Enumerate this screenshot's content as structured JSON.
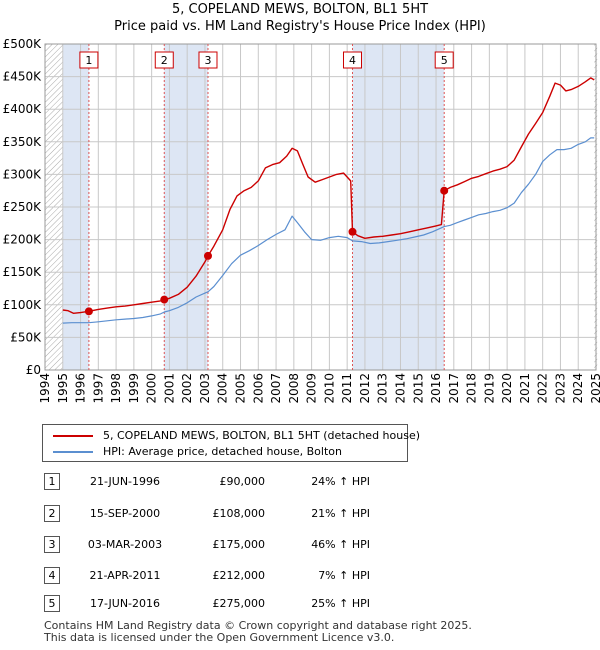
{
  "chart_data": {
    "type": "line",
    "title": "5, COPELAND MEWS, BOLTON, BL1 5HT",
    "subtitle": "Price paid vs. HM Land Registry's House Price Index (HPI)",
    "xlim": [
      1994,
      2025
    ],
    "ylim": [
      0,
      500000
    ],
    "y_ticks": [
      {
        "value": 0,
        "label": "£0"
      },
      {
        "value": 50000,
        "label": "£50K"
      },
      {
        "value": 100000,
        "label": "£100K"
      },
      {
        "value": 150000,
        "label": "£150K"
      },
      {
        "value": 200000,
        "label": "£200K"
      },
      {
        "value": 250000,
        "label": "£250K"
      },
      {
        "value": 300000,
        "label": "£300K"
      },
      {
        "value": 350000,
        "label": "£350K"
      },
      {
        "value": 400000,
        "label": "£400K"
      },
      {
        "value": 450000,
        "label": "£450K"
      },
      {
        "value": 500000,
        "label": "£500K"
      }
    ],
    "x_ticks": [
      "1994",
      "1995",
      "1996",
      "1997",
      "1998",
      "1999",
      "2000",
      "2001",
      "2002",
      "2003",
      "2004",
      "2005",
      "2006",
      "2007",
      "2008",
      "2009",
      "2010",
      "2011",
      "2012",
      "2013",
      "2014",
      "2015",
      "2016",
      "2017",
      "2018",
      "2019",
      "2020",
      "2021",
      "2022",
      "2023",
      "2024",
      "2025"
    ],
    "data_start": 1995.0,
    "data_end": 2024.9,
    "grid": true,
    "shaded_bands": [
      [
        1995.0,
        1996.47
      ],
      [
        2000.71,
        2003.17
      ],
      [
        2011.3,
        2016.46
      ]
    ],
    "hatch_regions": [
      [
        1994.0,
        1995.0
      ],
      [
        2024.9,
        2025.0
      ]
    ],
    "series": [
      {
        "name": "5, COPELAND MEWS, BOLTON, BL1 5HT (detached house)",
        "color": "#cc0000",
        "points": [
          [
            1995.0,
            92000
          ],
          [
            1995.3,
            91000
          ],
          [
            1995.6,
            87000
          ],
          [
            1996.0,
            88000
          ],
          [
            1996.47,
            90000
          ],
          [
            1997.0,
            93000
          ],
          [
            1997.5,
            95000
          ],
          [
            1998.0,
            97000
          ],
          [
            1998.5,
            98000
          ],
          [
            1999.0,
            100000
          ],
          [
            1999.5,
            102000
          ],
          [
            2000.0,
            104000
          ],
          [
            2000.5,
            106000
          ],
          [
            2000.71,
            108000
          ],
          [
            2001.0,
            110000
          ],
          [
            2001.5,
            116000
          ],
          [
            2002.0,
            127000
          ],
          [
            2002.5,
            144000
          ],
          [
            2003.0,
            166000
          ],
          [
            2003.17,
            175000
          ],
          [
            2003.5,
            190000
          ],
          [
            2004.0,
            215000
          ],
          [
            2004.4,
            246000
          ],
          [
            2004.8,
            267000
          ],
          [
            2005.2,
            275000
          ],
          [
            2005.6,
            280000
          ],
          [
            2006.0,
            290000
          ],
          [
            2006.4,
            310000
          ],
          [
            2006.8,
            315000
          ],
          [
            2007.2,
            318000
          ],
          [
            2007.6,
            328000
          ],
          [
            2007.9,
            340000
          ],
          [
            2008.2,
            336000
          ],
          [
            2008.5,
            316000
          ],
          [
            2008.8,
            296000
          ],
          [
            2009.2,
            288000
          ],
          [
            2009.6,
            292000
          ],
          [
            2010.0,
            296000
          ],
          [
            2010.4,
            300000
          ],
          [
            2010.8,
            302000
          ],
          [
            2011.2,
            290000
          ],
          [
            2011.3,
            212000
          ],
          [
            2011.6,
            206000
          ],
          [
            2012.0,
            202000
          ],
          [
            2012.5,
            204000
          ],
          [
            2013.0,
            205000
          ],
          [
            2013.5,
            207000
          ],
          [
            2014.0,
            209000
          ],
          [
            2014.5,
            212000
          ],
          [
            2015.0,
            215000
          ],
          [
            2015.5,
            218000
          ],
          [
            2016.0,
            221000
          ],
          [
            2016.3,
            223000
          ],
          [
            2016.46,
            275000
          ],
          [
            2016.8,
            280000
          ],
          [
            2017.2,
            284000
          ],
          [
            2017.6,
            289000
          ],
          [
            2018.0,
            294000
          ],
          [
            2018.4,
            297000
          ],
          [
            2018.8,
            301000
          ],
          [
            2019.2,
            305000
          ],
          [
            2019.6,
            308000
          ],
          [
            2020.0,
            312000
          ],
          [
            2020.4,
            322000
          ],
          [
            2020.8,
            342000
          ],
          [
            2021.2,
            362000
          ],
          [
            2021.6,
            378000
          ],
          [
            2022.0,
            395000
          ],
          [
            2022.4,
            420000
          ],
          [
            2022.7,
            440000
          ],
          [
            2023.0,
            437000
          ],
          [
            2023.3,
            428000
          ],
          [
            2023.6,
            430000
          ],
          [
            2024.0,
            435000
          ],
          [
            2024.4,
            442000
          ],
          [
            2024.7,
            448000
          ],
          [
            2024.9,
            445000
          ]
        ]
      },
      {
        "name": "HPI: Average price, detached house, Bolton",
        "color": "#5b8fd0",
        "points": [
          [
            1995.0,
            72000
          ],
          [
            1995.5,
            72500
          ],
          [
            1996.0,
            72500
          ],
          [
            1996.47,
            72600
          ],
          [
            1997.0,
            74000
          ],
          [
            1997.5,
            75500
          ],
          [
            1998.0,
            77000
          ],
          [
            1998.5,
            78000
          ],
          [
            1999.0,
            79000
          ],
          [
            1999.5,
            80500
          ],
          [
            2000.0,
            83000
          ],
          [
            2000.5,
            86000
          ],
          [
            2000.71,
            89000
          ],
          [
            2001.0,
            91000
          ],
          [
            2001.5,
            96000
          ],
          [
            2002.0,
            103000
          ],
          [
            2002.5,
            112000
          ],
          [
            2003.0,
            118000
          ],
          [
            2003.17,
            120000
          ],
          [
            2003.5,
            128000
          ],
          [
            2004.0,
            145000
          ],
          [
            2004.5,
            163000
          ],
          [
            2005.0,
            176000
          ],
          [
            2005.5,
            183000
          ],
          [
            2006.0,
            191000
          ],
          [
            2006.5,
            200000
          ],
          [
            2007.0,
            208000
          ],
          [
            2007.5,
            215000
          ],
          [
            2007.9,
            236000
          ],
          [
            2008.2,
            226000
          ],
          [
            2008.6,
            212000
          ],
          [
            2009.0,
            200000
          ],
          [
            2009.5,
            199000
          ],
          [
            2010.0,
            203000
          ],
          [
            2010.5,
            205000
          ],
          [
            2011.0,
            203000
          ],
          [
            2011.3,
            198000
          ],
          [
            2011.8,
            197000
          ],
          [
            2012.3,
            194000
          ],
          [
            2012.8,
            195000
          ],
          [
            2013.3,
            197000
          ],
          [
            2013.8,
            199000
          ],
          [
            2014.3,
            201000
          ],
          [
            2014.8,
            204000
          ],
          [
            2015.3,
            207000
          ],
          [
            2015.8,
            212000
          ],
          [
            2016.46,
            220000
          ],
          [
            2016.8,
            222000
          ],
          [
            2017.2,
            226000
          ],
          [
            2017.6,
            230000
          ],
          [
            2018.0,
            234000
          ],
          [
            2018.4,
            238000
          ],
          [
            2018.8,
            240000
          ],
          [
            2019.2,
            243000
          ],
          [
            2019.6,
            245000
          ],
          [
            2020.0,
            249000
          ],
          [
            2020.4,
            256000
          ],
          [
            2020.8,
            272000
          ],
          [
            2021.2,
            285000
          ],
          [
            2021.6,
            300000
          ],
          [
            2022.0,
            320000
          ],
          [
            2022.4,
            330000
          ],
          [
            2022.8,
            338000
          ],
          [
            2023.2,
            338000
          ],
          [
            2023.6,
            340000
          ],
          [
            2024.0,
            346000
          ],
          [
            2024.4,
            350000
          ],
          [
            2024.7,
            356000
          ],
          [
            2024.9,
            356000
          ]
        ]
      }
    ],
    "sales": [
      {
        "num": "1",
        "year": 1996.47,
        "price": 90000
      },
      {
        "num": "2",
        "year": 2000.71,
        "price": 108000
      },
      {
        "num": "3",
        "year": 2003.17,
        "price": 175000
      },
      {
        "num": "4",
        "year": 2011.3,
        "price": 212000
      },
      {
        "num": "5",
        "year": 2016.46,
        "price": 275000
      }
    ]
  },
  "legend": {
    "property_label": "5, COPELAND MEWS, BOLTON, BL1 5HT (detached house)",
    "hpi_label": "HPI: Average price, detached house, Bolton"
  },
  "transactions": [
    {
      "num": "1",
      "date": "21-JUN-1996",
      "price": "£90,000",
      "hpi": "24% ↑ HPI"
    },
    {
      "num": "2",
      "date": "15-SEP-2000",
      "price": "£108,000",
      "hpi": "21% ↑ HPI"
    },
    {
      "num": "3",
      "date": "03-MAR-2003",
      "price": "£175,000",
      "hpi": "46% ↑ HPI"
    },
    {
      "num": "4",
      "date": "21-APR-2011",
      "price": "£212,000",
      "hpi": "7% ↑ HPI"
    },
    {
      "num": "5",
      "date": "17-JUN-2016",
      "price": "£275,000",
      "hpi": "25% ↑ HPI"
    }
  ],
  "footer": {
    "line1": "Contains HM Land Registry data © Crown copyright and database right 2025.",
    "line2": "This data is licensed under the Open Government Licence v3.0."
  },
  "colors": {
    "property": "#cc0000",
    "hpi": "#5b8fd0",
    "band": "#dde6f4",
    "grid": "#c8c8c8"
  }
}
